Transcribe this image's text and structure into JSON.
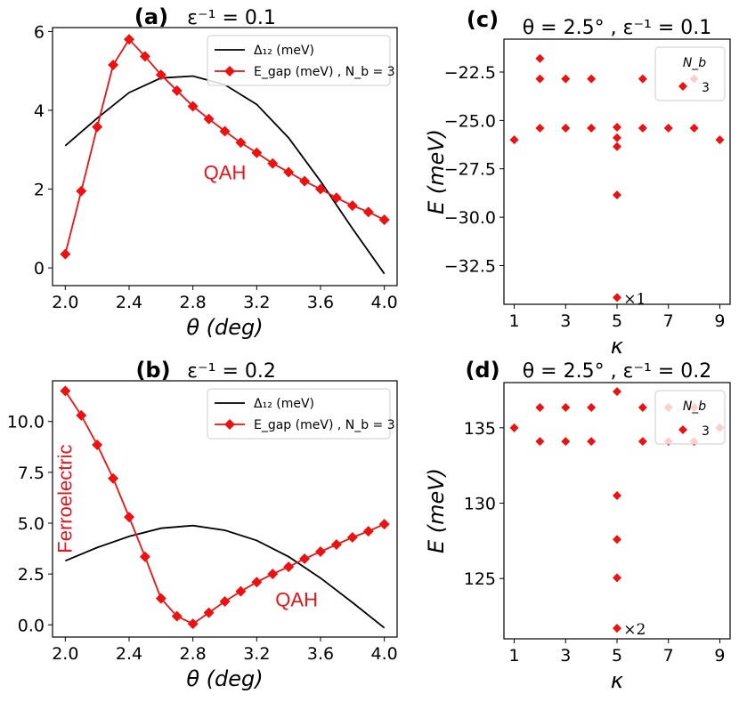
{
  "colors": {
    "red": "#ee1111",
    "black": "#000000",
    "annotation": "#e8141b"
  },
  "chart_data": [
    {
      "id": "a",
      "type": "line",
      "panel_label": "(a)",
      "title": "ε⁻¹ = 0.1",
      "xlabel": "θ (deg)",
      "ylabel": "",
      "xlim": [
        1.92,
        4.08
      ],
      "ylim": [
        -0.45,
        6.1
      ],
      "xticks": [
        2.0,
        2.4,
        2.8,
        3.2,
        3.6,
        4.0
      ],
      "xtick_labels": [
        "2.0",
        "2.4",
        "2.8",
        "3.2",
        "3.6",
        "4.0"
      ],
      "yticks": [
        0,
        2,
        4,
        6
      ],
      "ytick_labels": [
        "0",
        "2",
        "4",
        "6"
      ],
      "legend": {
        "placement": "top-right",
        "entries": [
          "Δ₁₂ (meV)",
          "E_gap (meV) , N_b = 3"
        ]
      },
      "annotations": [
        {
          "text": "QAH",
          "x": 3.0,
          "y": 2.25
        }
      ],
      "series": [
        {
          "name": "Δ₁₂ (meV)",
          "style": "line",
          "color": "#000000",
          "x": [
            2.0,
            2.2,
            2.4,
            2.6,
            2.8,
            3.0,
            3.2,
            3.4,
            3.6,
            3.8,
            4.0
          ],
          "y": [
            3.1,
            3.8,
            4.45,
            4.82,
            4.87,
            4.65,
            4.15,
            3.3,
            2.2,
            1.0,
            -0.15
          ]
        },
        {
          "name": "E_gap (meV) , N_b = 3",
          "style": "line-marker",
          "color": "#ee1111",
          "x": [
            2.0,
            2.1,
            2.2,
            2.3,
            2.4,
            2.5,
            2.6,
            2.7,
            2.8,
            2.9,
            3.0,
            3.1,
            3.2,
            3.3,
            3.4,
            3.5,
            3.6,
            3.7,
            3.8,
            3.9,
            4.0
          ],
          "y": [
            0.35,
            1.95,
            3.58,
            5.15,
            5.8,
            5.37,
            4.9,
            4.5,
            4.1,
            3.78,
            3.47,
            3.18,
            2.92,
            2.65,
            2.43,
            2.2,
            2.0,
            1.78,
            1.58,
            1.42,
            1.22
          ]
        }
      ]
    },
    {
      "id": "b",
      "type": "line",
      "panel_label": "(b)",
      "title": "ε⁻¹ = 0.2",
      "xlabel": "θ (deg)",
      "ylabel": "",
      "xlim": [
        1.92,
        4.08
      ],
      "ylim": [
        -0.6,
        12.0
      ],
      "xticks": [
        2.0,
        2.4,
        2.8,
        3.2,
        3.6,
        4.0
      ],
      "xtick_labels": [
        "2.0",
        "2.4",
        "2.8",
        "3.2",
        "3.6",
        "4.0"
      ],
      "yticks": [
        0,
        2.5,
        5,
        7.5,
        10
      ],
      "ytick_labels": [
        "0.0",
        "2.5",
        "5.0",
        "7.5",
        "10.0"
      ],
      "legend": {
        "placement": "top-right",
        "entries": [
          "Δ₁₂ (meV)",
          "E_gap (meV) , N_b = 3"
        ]
      },
      "annotations": [
        {
          "text": "QAH",
          "x": 3.45,
          "y": 0.9
        },
        {
          "text": "Ferroelectric",
          "x": 2.04,
          "y": 6.2,
          "rotate": -90
        }
      ],
      "series": [
        {
          "name": "Δ₁₂ (meV)",
          "style": "line",
          "color": "#000000",
          "x": [
            2.0,
            2.2,
            2.4,
            2.6,
            2.8,
            3.0,
            3.2,
            3.4,
            3.6,
            3.8,
            4.0
          ],
          "y": [
            3.15,
            3.8,
            4.35,
            4.75,
            4.88,
            4.65,
            4.15,
            3.35,
            2.3,
            1.1,
            -0.15
          ]
        },
        {
          "name": "E_gap (meV) , N_b = 3",
          "style": "line-marker",
          "color": "#ee1111",
          "x": [
            2.0,
            2.1,
            2.2,
            2.3,
            2.4,
            2.5,
            2.6,
            2.7,
            2.8,
            2.9,
            3.0,
            3.1,
            3.2,
            3.3,
            3.4,
            3.5,
            3.6,
            3.7,
            3.8,
            3.9,
            4.0
          ],
          "y": [
            11.5,
            10.3,
            8.85,
            7.2,
            5.3,
            3.35,
            1.3,
            0.42,
            0.05,
            0.6,
            1.15,
            1.65,
            2.1,
            2.5,
            2.85,
            3.25,
            3.6,
            3.95,
            4.3,
            4.6,
            4.95
          ]
        }
      ]
    },
    {
      "id": "c",
      "type": "scatter",
      "panel_label": "(c)",
      "title": "θ = 2.5° , ε⁻¹ = 0.1",
      "xlabel": "κ",
      "ylabel": "E (meV)",
      "xlim": [
        0.6,
        9.4
      ],
      "ylim": [
        -34.5,
        -20.8
      ],
      "xticks": [
        1,
        3,
        5,
        7,
        9
      ],
      "xtick_labels": [
        "1",
        "3",
        "5",
        "7",
        "9"
      ],
      "yticks": [
        -22.5,
        -25.0,
        -27.5,
        -30.0,
        -32.5
      ],
      "ytick_labels": [
        "−22.5",
        "−25.0",
        "−27.5",
        "−30.0",
        "−32.5"
      ],
      "legend": {
        "placement": "top-right",
        "title": "N_b",
        "entries": [
          "3"
        ]
      },
      "annotations": [
        {
          "text": "×1",
          "x": 5.25,
          "y": -34.15
        }
      ],
      "points": {
        "x": [
          1,
          2,
          2,
          2,
          3,
          3,
          4,
          4,
          5,
          5,
          5,
          5,
          5,
          6,
          6,
          7,
          8,
          8,
          9
        ],
        "y": [
          -26.0,
          -21.8,
          -22.85,
          -25.4,
          -22.85,
          -25.4,
          -22.85,
          -25.4,
          -25.35,
          -25.9,
          -26.35,
          -28.85,
          -34.15,
          -22.85,
          -25.4,
          -25.4,
          -22.85,
          -25.4,
          -26.0
        ]
      }
    },
    {
      "id": "d",
      "type": "scatter",
      "panel_label": "(d)",
      "title": "θ = 2.5° , ε⁻¹ = 0.2",
      "xlabel": "κ",
      "ylabel": "E (meV)",
      "xlim": [
        0.6,
        9.4
      ],
      "ylim": [
        121.0,
        138.0
      ],
      "xticks": [
        1,
        3,
        5,
        7,
        9
      ],
      "xtick_labels": [
        "1",
        "3",
        "5",
        "7",
        "9"
      ],
      "yticks": [
        125,
        130,
        135
      ],
      "ytick_labels": [
        "125",
        "130",
        "135"
      ],
      "legend": {
        "placement": "top-right",
        "title": "N_b",
        "entries": [
          "3"
        ]
      },
      "annotations": [
        {
          "text": "×2",
          "x": 5.25,
          "y": 121.7
        }
      ],
      "points": {
        "x": [
          1,
          2,
          2,
          3,
          3,
          4,
          4,
          5,
          5,
          5,
          5,
          5,
          6,
          6,
          7,
          7,
          8,
          8,
          9
        ],
        "y": [
          135.0,
          136.35,
          134.1,
          136.35,
          134.1,
          136.35,
          134.1,
          137.4,
          130.5,
          127.6,
          125.05,
          121.7,
          136.35,
          134.1,
          136.35,
          134.1,
          136.35,
          134.1,
          135.0
        ]
      }
    }
  ]
}
